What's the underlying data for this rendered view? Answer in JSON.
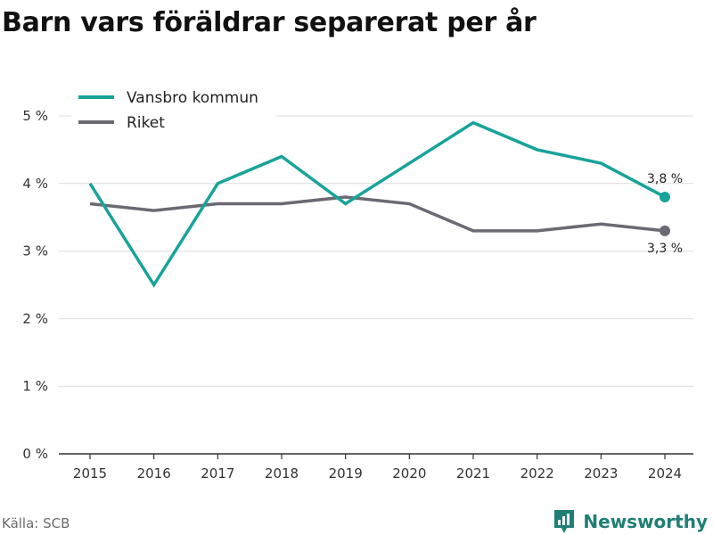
{
  "title": "Barn vars föräldrar separerat per år",
  "source": "Källa: SCB",
  "brand": {
    "name": "Newsworthy",
    "icon": "newsworthy-logo-icon"
  },
  "colors": {
    "kommun": "#17a39a",
    "riket": "#6b6a72",
    "grid": "#dcdcdc",
    "axis": "#333333"
  },
  "chart_data": {
    "type": "line",
    "x": [
      "2015",
      "2016",
      "2017",
      "2018",
      "2019",
      "2020",
      "2021",
      "2022",
      "2023",
      "2024"
    ],
    "ylim": [
      0,
      5
    ],
    "y_ticks": [
      "0 %",
      "1 %",
      "2 %",
      "3 %",
      "4 %",
      "5 %"
    ],
    "grid": true,
    "legend": "top-left",
    "series": [
      {
        "name": "Vansbro kommun",
        "values": [
          4.0,
          2.5,
          4.0,
          4.4,
          3.7,
          4.3,
          4.9,
          4.5,
          4.3,
          3.8
        ],
        "end_label": "3,8 %"
      },
      {
        "name": "Riket",
        "values": [
          3.7,
          3.6,
          3.7,
          3.7,
          3.8,
          3.7,
          3.3,
          3.3,
          3.4,
          3.3
        ],
        "end_label": "3,3 %"
      }
    ]
  }
}
